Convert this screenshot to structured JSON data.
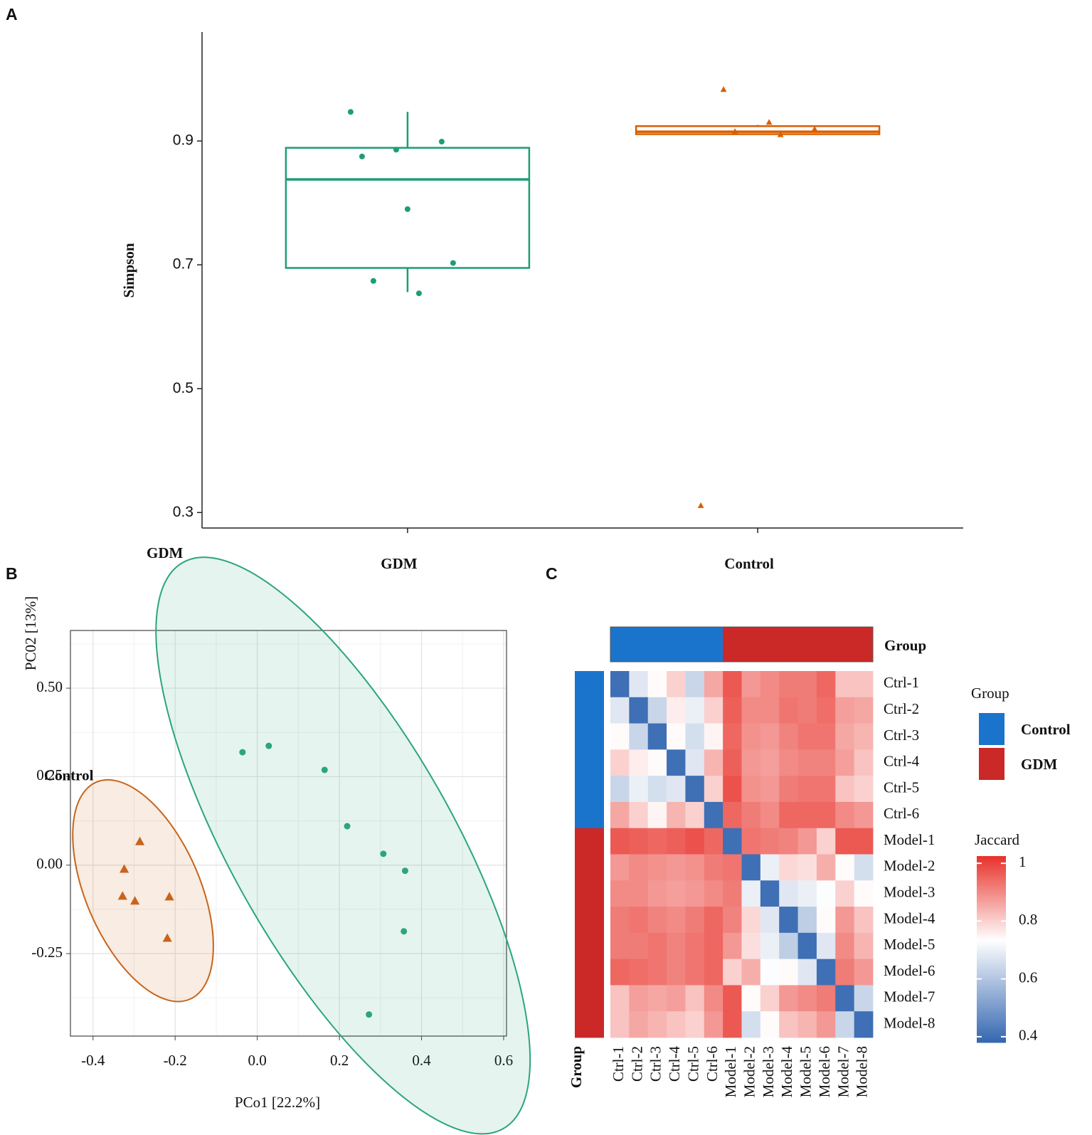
{
  "chart_data": [
    {
      "panel": "A",
      "type": "box",
      "ylabel": "Simpson",
      "categories": [
        "GDM",
        "Control"
      ],
      "ylim": [
        0.275,
        1.076
      ],
      "yticks": [
        0.3,
        0.5,
        0.7,
        0.9
      ],
      "boxes": [
        {
          "color": "#1b9e77",
          "marker": "circle",
          "q1": 0.695,
          "median": 0.838,
          "q3": 0.889,
          "whisker_low": 0.656,
          "whisker_high": 0.947,
          "points": [
            0.947,
            0.886,
            0.899,
            0.875,
            0.79,
            0.703,
            0.674,
            0.654
          ]
        },
        {
          "color": "#d95f02",
          "marker": "triangle",
          "q1": 0.911,
          "median": 0.915,
          "q3": 0.924,
          "whisker_low": 0.91,
          "whisker_high": 0.926,
          "points": [
            0.983,
            0.93,
            0.919,
            0.915,
            0.91,
            0.311
          ]
        }
      ]
    },
    {
      "panel": "B",
      "type": "scatter",
      "xlabel": "PCo1 [22.2%]",
      "ylabel": "PC02 [13%]",
      "xlim": [
        -0.455,
        0.607
      ],
      "ylim": [
        -0.483,
        0.663
      ],
      "xticks": [
        -0.4,
        -0.2,
        {
          "value": 0,
          "label": "0.0"
        },
        0.2,
        0.4,
        0.6
      ],
      "yticks": [
        {
          "value": -0.25,
          "label": "-0.25"
        },
        {
          "value": 0,
          "label": "0.00"
        },
        0.25,
        {
          "value": 0.5,
          "label": "0.50"
        }
      ],
      "grid": true,
      "ellipses": true,
      "series": [
        {
          "name": "GDM",
          "color": "#2aa57f",
          "marker": "circle",
          "x": [
            -0.036,
            0.028,
            0.164,
            0.219,
            0.307,
            0.36,
            0.357,
            0.272
          ],
          "y": [
            0.319,
            0.337,
            0.269,
            0.11,
            0.032,
            -0.016,
            -0.187,
            -0.422
          ]
        },
        {
          "name": "Control",
          "color": "#c8651b",
          "marker": "triangle",
          "x": [
            -0.286,
            -0.324,
            -0.328,
            -0.298,
            -0.214,
            -0.219
          ],
          "y": [
            0.066,
            -0.012,
            -0.088,
            -0.102,
            -0.09,
            -0.207
          ]
        }
      ]
    },
    {
      "panel": "C",
      "type": "heatmap",
      "colorbar_title": "Jaccard",
      "samples": [
        "Ctrl-1",
        "Ctrl-2",
        "Ctrl-3",
        "Ctrl-4",
        "Ctrl-5",
        "Ctrl-6",
        "Model-1",
        "Model-2",
        "Model-3",
        "Model-4",
        "Model-5",
        "Model-6",
        "Model-7",
        "Model-8"
      ],
      "zlim": [
        0.38,
        1.025
      ],
      "zticks": [
        0.4,
        0.6,
        0.8,
        1
      ],
      "annotation": {
        "title": "Group",
        "levels": [
          {
            "name": "Control",
            "color": "#1b74cc"
          },
          {
            "name": "GDM",
            "color": "#cb2828"
          }
        ],
        "membership": [
          0,
          0,
          0,
          0,
          0,
          0,
          1,
          1,
          1,
          1,
          1,
          1,
          1,
          1
        ]
      },
      "matrix": [
        [
          0.4,
          0.68,
          0.74,
          0.8,
          0.64,
          0.86,
          0.97,
          0.88,
          0.9,
          0.92,
          0.92,
          0.95,
          0.82,
          0.82
        ],
        [
          0.68,
          0.4,
          0.64,
          0.76,
          0.7,
          0.8,
          0.96,
          0.9,
          0.9,
          0.93,
          0.92,
          0.94,
          0.87,
          0.86
        ],
        [
          0.74,
          0.64,
          0.4,
          0.74,
          0.66,
          0.75,
          0.95,
          0.89,
          0.88,
          0.91,
          0.93,
          0.93,
          0.86,
          0.84
        ],
        [
          0.8,
          0.76,
          0.74,
          0.4,
          0.68,
          0.84,
          0.96,
          0.88,
          0.87,
          0.9,
          0.91,
          0.91,
          0.87,
          0.82
        ],
        [
          0.64,
          0.7,
          0.66,
          0.68,
          0.4,
          0.8,
          0.98,
          0.89,
          0.88,
          0.92,
          0.93,
          0.93,
          0.82,
          0.8
        ],
        [
          0.86,
          0.8,
          0.75,
          0.84,
          0.8,
          0.4,
          0.95,
          0.92,
          0.9,
          0.95,
          0.95,
          0.95,
          0.9,
          0.88
        ],
        [
          0.97,
          0.96,
          0.95,
          0.96,
          0.98,
          0.95,
          0.4,
          0.93,
          0.92,
          0.91,
          0.88,
          0.8,
          0.97,
          0.97
        ],
        [
          0.88,
          0.9,
          0.89,
          0.88,
          0.89,
          0.92,
          0.93,
          0.4,
          0.7,
          0.79,
          0.78,
          0.85,
          0.74,
          0.66
        ],
        [
          0.9,
          0.9,
          0.88,
          0.87,
          0.88,
          0.9,
          0.92,
          0.7,
          0.4,
          0.68,
          0.7,
          0.73,
          0.8,
          0.74
        ],
        [
          0.92,
          0.93,
          0.91,
          0.9,
          0.92,
          0.95,
          0.91,
          0.79,
          0.68,
          0.4,
          0.62,
          0.74,
          0.88,
          0.82
        ],
        [
          0.92,
          0.92,
          0.93,
          0.91,
          0.93,
          0.95,
          0.88,
          0.78,
          0.7,
          0.62,
          0.4,
          0.68,
          0.9,
          0.84
        ],
        [
          0.95,
          0.94,
          0.93,
          0.91,
          0.93,
          0.95,
          0.8,
          0.85,
          0.73,
          0.74,
          0.68,
          0.4,
          0.92,
          0.88
        ],
        [
          0.82,
          0.87,
          0.86,
          0.87,
          0.82,
          0.9,
          0.97,
          0.74,
          0.8,
          0.88,
          0.9,
          0.92,
          0.4,
          0.64
        ],
        [
          0.82,
          0.86,
          0.84,
          0.82,
          0.8,
          0.88,
          0.97,
          0.66,
          0.74,
          0.82,
          0.84,
          0.88,
          0.64,
          0.4
        ]
      ]
    }
  ]
}
